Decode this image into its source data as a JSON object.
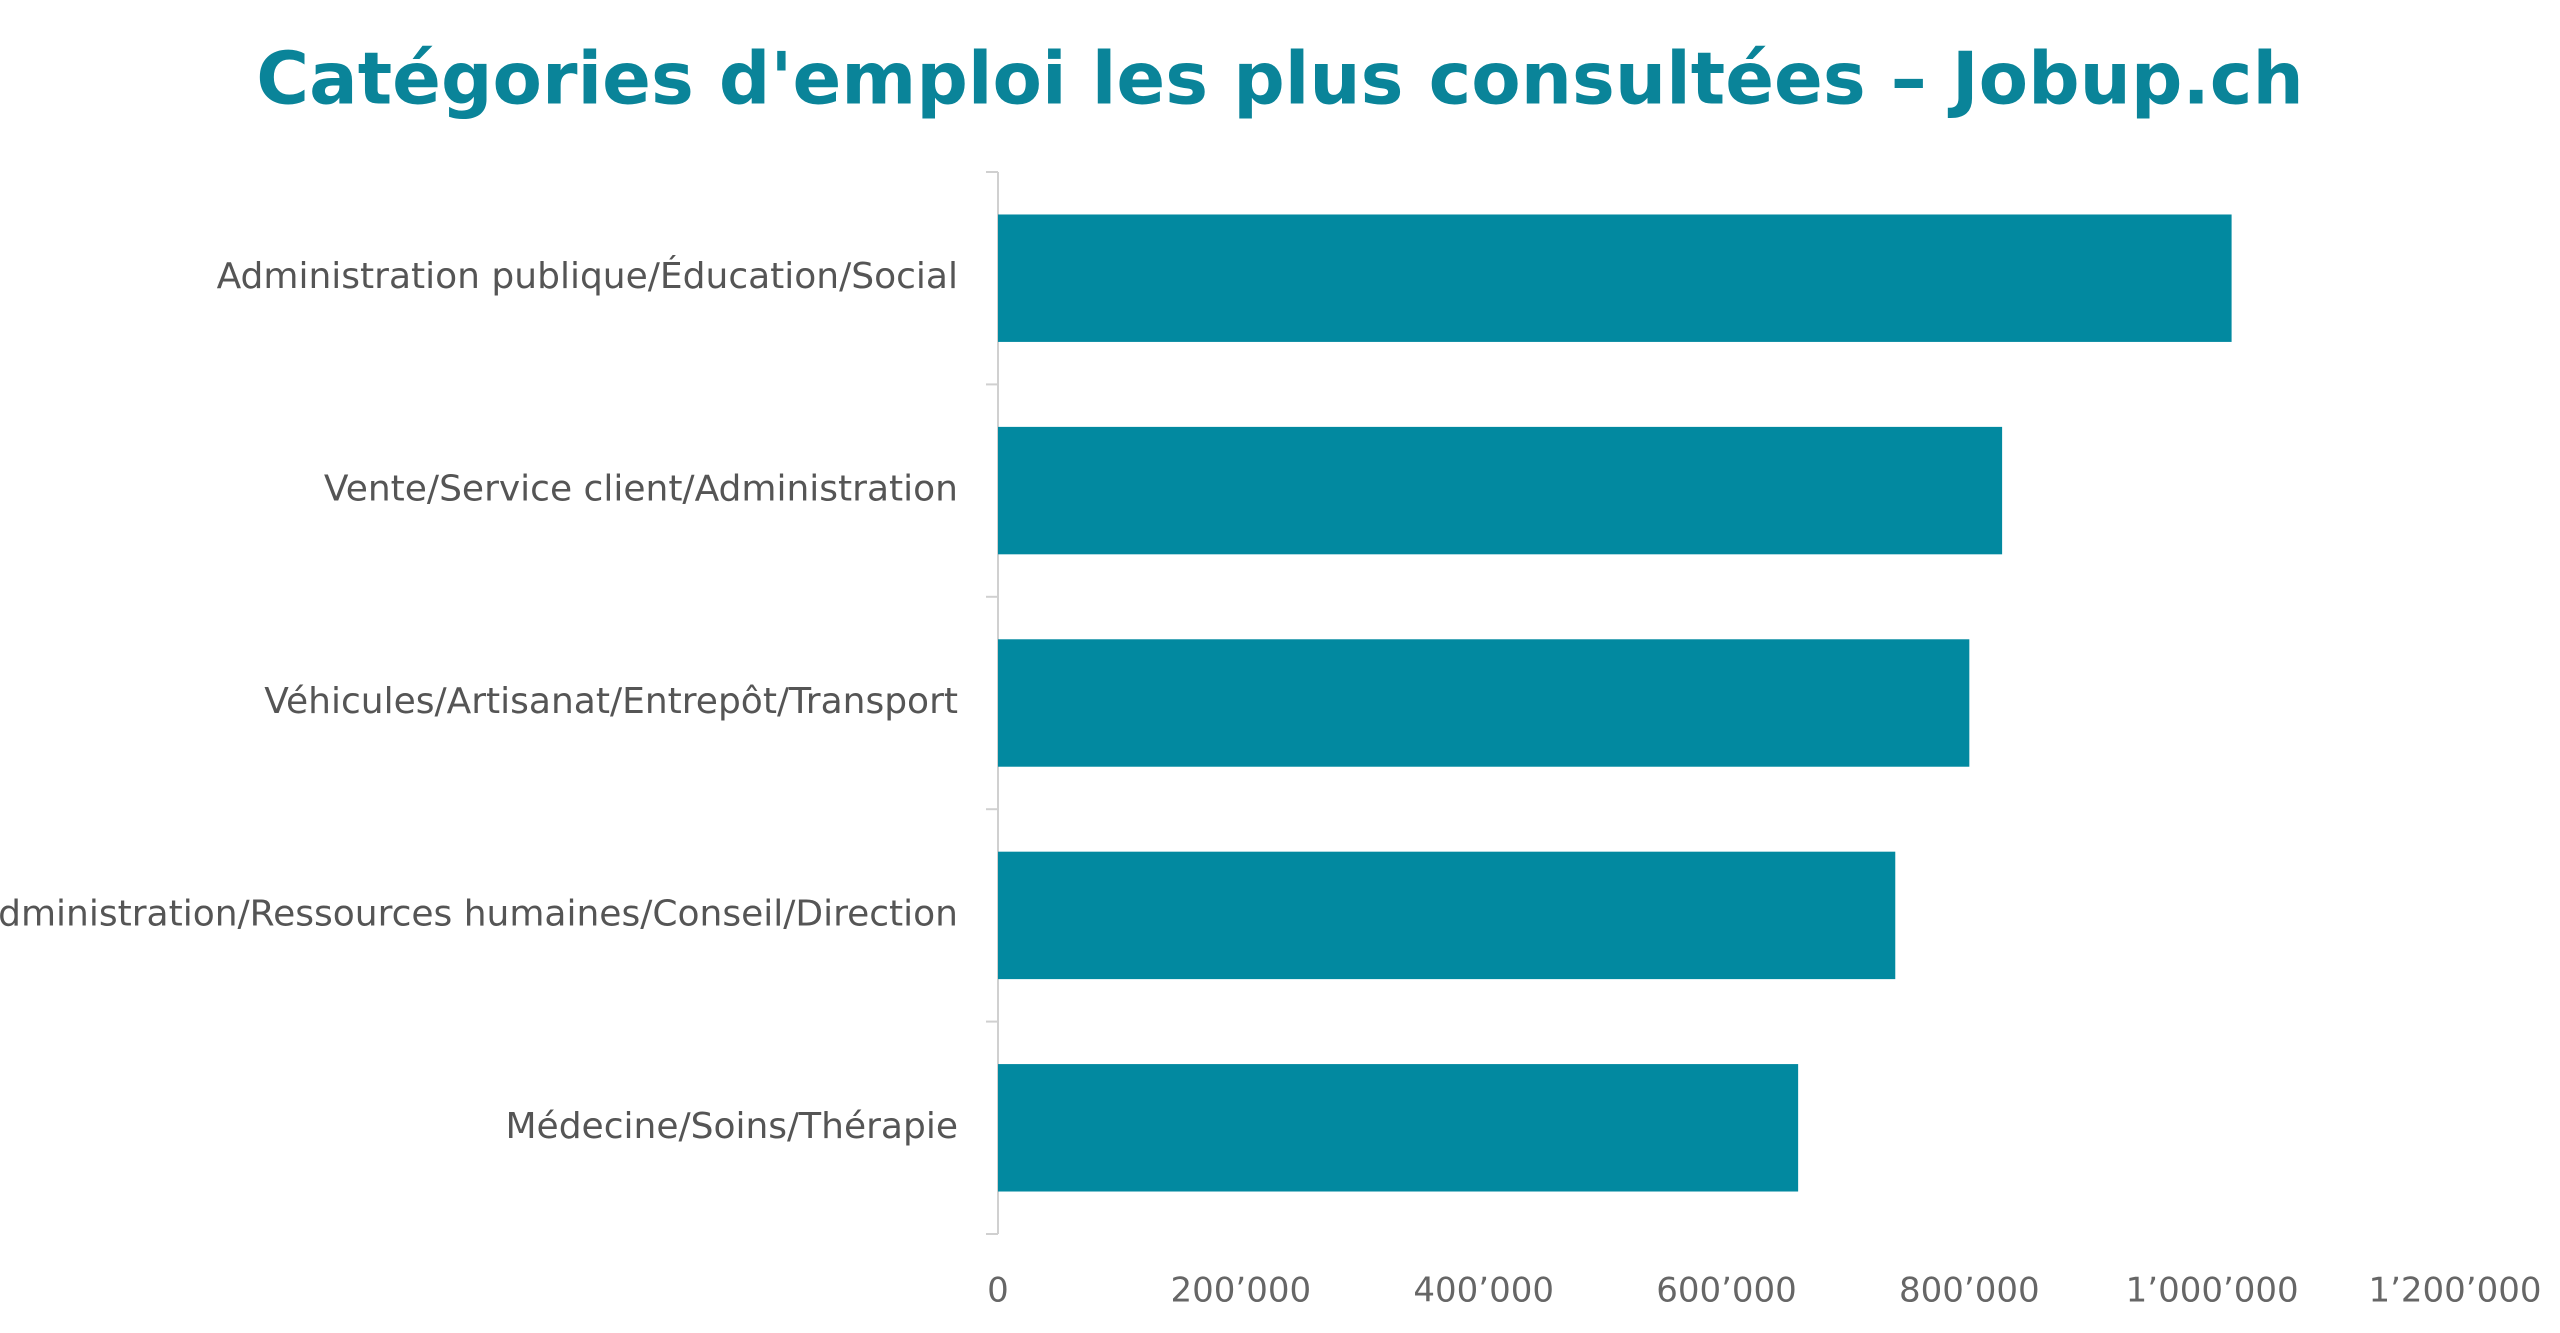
{
  "chart_data": {
    "type": "barh",
    "title": "Catégories d'emploi les plus consultées – Jobup.ch",
    "categories": [
      "Administration publique/Éducation/Social",
      "Vente/Service client/Administration",
      "Véhicules/Artisanat/Entrepôt/Transport",
      "Administration/Ressources humaines/Conseil/Direction",
      "Médecine/Soins/Thérapie"
    ],
    "values": [
      1016000,
      827000,
      800000,
      739000,
      659000
    ],
    "color": "#0289a0",
    "xlim": [
      0,
      1200000
    ],
    "xticks": [
      0,
      {
        "value": 200000,
        "label": "200’000"
      },
      {
        "value": 400000,
        "label": "400’000"
      },
      {
        "value": 600000,
        "label": "600’000"
      },
      {
        "value": 800000,
        "label": "800’000"
      },
      {
        "value": 1000000,
        "label": "1’000’000"
      },
      {
        "value": 1200000,
        "label": "1’200’000"
      }
    ],
    "grid": false
  }
}
